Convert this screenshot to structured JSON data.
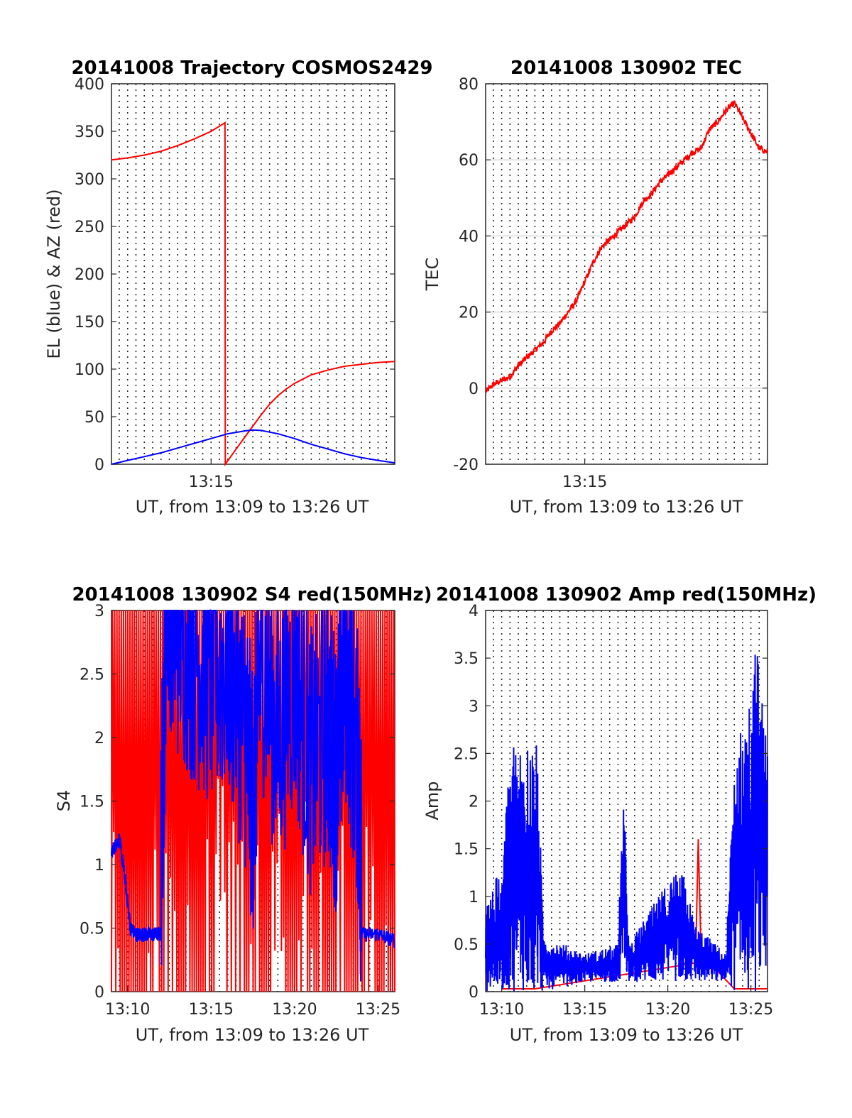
{
  "figure": {
    "xlabel": "UT, from 13:09 to 13:26 UT"
  },
  "colors": {
    "red": "#ff0000",
    "blue": "#0000ff"
  },
  "chart_data": [
    {
      "id": "traj",
      "type": "line",
      "title": "20141008 Trajectory COSMOS2429",
      "xlabel": "UT, from 13:09 to 13:26 UT",
      "ylabel": "EL (blue) & AZ (red)",
      "xlim": [
        "13:09:02",
        "13:26:00"
      ],
      "ylim": [
        0,
        400
      ],
      "yticks": [
        0,
        50,
        100,
        150,
        200,
        250,
        300,
        350,
        400
      ],
      "xticks": [
        "13:15"
      ],
      "grid": "vertical dotted every 30 s",
      "series": [
        {
          "color": "#ff0000",
          "points": [
            [
              "13:09:02",
              320
            ],
            [
              "13:10:00",
              322
            ],
            [
              "13:11:00",
              325
            ],
            [
              "13:12:00",
              329
            ],
            [
              "13:13:00",
              335
            ],
            [
              "13:14:00",
              342
            ],
            [
              "13:15:00",
              350
            ],
            [
              "13:15:50",
              359
            ],
            [
              "13:15:51",
              0
            ],
            [
              "13:16:30",
              16
            ],
            [
              "13:17:00",
              28
            ],
            [
              "13:17:30",
              40
            ],
            [
              "13:18:00",
              52
            ],
            [
              "13:18:30",
              63
            ],
            [
              "13:19:00",
              72
            ],
            [
              "13:19:30",
              79
            ],
            [
              "13:20:00",
              85
            ],
            [
              "13:21:00",
              94
            ],
            [
              "13:22:00",
              99
            ],
            [
              "13:23:00",
              103
            ],
            [
              "13:24:00",
              105
            ],
            [
              "13:25:00",
              107
            ],
            [
              "13:26:00",
              108
            ]
          ]
        },
        {
          "color": "#0000ff",
          "points": [
            [
              "13:09:02",
              0
            ],
            [
              "13:10:00",
              4
            ],
            [
              "13:11:00",
              8
            ],
            [
              "13:12:00",
              12
            ],
            [
              "13:13:00",
              17
            ],
            [
              "13:14:00",
              22
            ],
            [
              "13:15:00",
              27
            ],
            [
              "13:16:00",
              32
            ],
            [
              "13:17:00",
              35
            ],
            [
              "13:17:30",
              36
            ],
            [
              "13:18:00",
              35.5
            ],
            [
              "13:19:00",
              32
            ],
            [
              "13:20:00",
              27
            ],
            [
              "13:21:00",
              21
            ],
            [
              "13:22:00",
              16
            ],
            [
              "13:23:00",
              11
            ],
            [
              "13:24:00",
              7
            ],
            [
              "13:25:00",
              4
            ],
            [
              "13:26:00",
              1.5
            ]
          ]
        }
      ]
    },
    {
      "id": "tec",
      "type": "line",
      "title": "20141008 130902 TEC",
      "xlabel": "UT, from 13:09 to 13:26 UT",
      "ylabel": "TEC",
      "xlim": [
        "13:09:02",
        "13:26:00"
      ],
      "ylim": [
        -20,
        80
      ],
      "yticks": [
        -20,
        0,
        20,
        40,
        60,
        80
      ],
      "xticks": [
        "13:15"
      ],
      "grid": "vertical dotted every 30 s, horizontal solid at y ticks",
      "series": [
        {
          "color": "#ff0000",
          "points": [
            [
              "13:09:02",
              -1
            ],
            [
              "13:09:30",
              1
            ],
            [
              "13:10:00",
              2
            ],
            [
              "13:10:30",
              3
            ],
            [
              "13:11:00",
              6
            ],
            [
              "13:11:30",
              8
            ],
            [
              "13:12:00",
              10
            ],
            [
              "13:12:30",
              12
            ],
            [
              "13:13:00",
              15
            ],
            [
              "13:13:30",
              17
            ],
            [
              "13:14:00",
              20
            ],
            [
              "13:14:30",
              23
            ],
            [
              "13:15:00",
              28
            ],
            [
              "13:15:30",
              33
            ],
            [
              "13:16:00",
              37
            ],
            [
              "13:16:30",
              39
            ],
            [
              "13:17:00",
              41
            ],
            [
              "13:17:30",
              43
            ],
            [
              "13:18:00",
              45
            ],
            [
              "13:18:30",
              49
            ],
            [
              "13:19:00",
              51
            ],
            [
              "13:19:30",
              54
            ],
            [
              "13:20:00",
              56
            ],
            [
              "13:20:30",
              58
            ],
            [
              "13:21:00",
              60
            ],
            [
              "13:21:30",
              62
            ],
            [
              "13:22:00",
              63
            ],
            [
              "13:22:30",
              68
            ],
            [
              "13:23:00",
              70
            ],
            [
              "13:23:30",
              73
            ],
            [
              "13:24:00",
              75
            ],
            [
              "13:24:30",
              71
            ],
            [
              "13:25:00",
              67
            ],
            [
              "13:25:30",
              63
            ],
            [
              "13:26:00",
              62
            ]
          ]
        }
      ]
    },
    {
      "id": "s4",
      "type": "line",
      "title": "20141008 130902 S4 red(150MHz)",
      "xlabel": "UT, from 13:09 to 13:26 UT",
      "ylabel": "S4",
      "xlim": [
        "13:09:02",
        "13:26:00"
      ],
      "ylim": [
        0,
        3
      ],
      "yticks": [
        0,
        0.5,
        1,
        1.5,
        2,
        2.5,
        3
      ],
      "xticks": [
        "13:10",
        "13:15",
        "13:20",
        "13:25"
      ],
      "grid": "vertical dotted every 30 s",
      "series": [
        {
          "color": "#ff0000",
          "description_values": "rapid oscillation between 0 and 3 (clipped) from 13:09 to 13:26",
          "envelope": [
            [
              "13:09:02",
              0,
              3
            ],
            [
              "13:12:00",
              0,
              3
            ],
            [
              "13:18:00",
              0,
              3
            ],
            [
              "13:24:00",
              0,
              3
            ],
            [
              "13:26:00",
              2.5,
              3
            ]
          ]
        },
        {
          "color": "#0000ff",
          "points": [
            [
              "13:09:02",
              1.1
            ],
            [
              "13:09:30",
              1.2
            ],
            [
              "13:09:50",
              0.9
            ],
            [
              "13:10:10",
              0.5
            ],
            [
              "13:10:30",
              0.45
            ],
            [
              "13:11:00",
              0.45
            ],
            [
              "13:11:30",
              0.45
            ],
            [
              "13:12:00",
              0.45
            ],
            [
              "13:12:20",
              2.8
            ],
            [
              "13:13:00",
              2.4
            ],
            [
              "13:14:00",
              2.2
            ],
            [
              "13:15:00",
              2.0
            ],
            [
              "13:16:00",
              2.1
            ],
            [
              "13:17:00",
              1.6
            ],
            [
              "13:17:30",
              1.0
            ],
            [
              "13:18:00",
              2.2
            ],
            [
              "13:19:00",
              1.5
            ],
            [
              "13:20:00",
              2.0
            ],
            [
              "13:21:00",
              1.3
            ],
            [
              "13:22:00",
              1.6
            ],
            [
              "13:22:30",
              1.2
            ],
            [
              "13:23:00",
              2.1
            ],
            [
              "13:23:50",
              1.2
            ],
            [
              "13:24:00",
              0.45
            ],
            [
              "13:25:00",
              0.45
            ],
            [
              "13:26:00",
              0.4
            ]
          ]
        }
      ]
    },
    {
      "id": "amp",
      "type": "line",
      "title": "20141008 130902 Amp red(150MHz)",
      "xlabel": "UT, from 13:09 to 13:26 UT",
      "ylabel": "Amp",
      "xlim": [
        "13:09:02",
        "13:26:00"
      ],
      "ylim": [
        0,
        4
      ],
      "yticks": [
        0,
        0.5,
        1,
        1.5,
        2,
        2.5,
        3,
        3.5,
        4
      ],
      "xticks": [
        "13:10",
        "13:15",
        "13:20",
        "13:25"
      ],
      "grid": "vertical dotted every 30 s",
      "series": [
        {
          "color": "#ff0000",
          "points": [
            [
              "13:10:00",
              0.03
            ],
            [
              "13:12:00",
              0.03
            ],
            [
              "13:21:40",
              0.3
            ],
            [
              "13:21:50",
              1.6
            ],
            [
              "13:22:00",
              0.4
            ],
            [
              "13:24:00",
              0.03
            ],
            [
              "13:26:00",
              0.03
            ]
          ]
        },
        {
          "color": "#0000ff",
          "envelope": [
            [
              "13:09:02",
              0,
              1.0
            ],
            [
              "13:10:00",
              0,
              1.3
            ],
            [
              "13:10:30",
              0,
              2.6
            ],
            [
              "13:11:30",
              0,
              2.65
            ],
            [
              "13:12:10",
              0,
              2.6
            ],
            [
              "13:12:30",
              0,
              0.6
            ],
            [
              "13:15:00",
              0.1,
              0.4
            ],
            [
              "13:17:00",
              0.1,
              0.5
            ],
            [
              "13:17:20",
              0.1,
              2.2
            ],
            [
              "13:17:40",
              0.1,
              0.5
            ],
            [
              "13:20:40",
              0.1,
              1.35
            ],
            [
              "13:21:00",
              0.1,
              1.2
            ],
            [
              "13:21:40",
              0.1,
              0.7
            ],
            [
              "13:23:30",
              0.1,
              0.4
            ],
            [
              "13:24:00",
              0,
              2.5
            ],
            [
              "13:25:00",
              0,
              3.2
            ],
            [
              "13:25:20",
              0,
              3.7
            ],
            [
              "13:26:00",
              0.3,
              2.5
            ]
          ]
        }
      ]
    }
  ]
}
